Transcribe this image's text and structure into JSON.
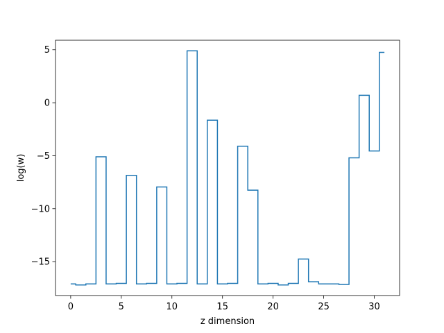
{
  "chart_data": {
    "type": "line",
    "drawstyle": "steps-mid",
    "title": "",
    "xlabel": "z dimension",
    "ylabel": "log(w)",
    "xlim": [
      -1.5,
      32.5
    ],
    "ylim": [
      -18.2,
      5.9
    ],
    "xticks": [
      0,
      5,
      10,
      15,
      20,
      25,
      30
    ],
    "xtick_labels": [
      "0",
      "5",
      "10",
      "15",
      "20",
      "25",
      "30"
    ],
    "yticks": [
      5,
      0,
      -5,
      -10,
      -15
    ],
    "ytick_labels": [
      "5",
      "0",
      "−5",
      "−10",
      "−15"
    ],
    "grid": false,
    "legend": "none",
    "color": "#1f77b4",
    "x": [
      0,
      1,
      2,
      3,
      4,
      5,
      6,
      7,
      8,
      9,
      10,
      11,
      12,
      13,
      14,
      15,
      16,
      17,
      18,
      19,
      20,
      21,
      22,
      23,
      24,
      25,
      26,
      27,
      28,
      29,
      30,
      31
    ],
    "series": [
      {
        "values": [
          -17.1,
          -17.2,
          -17.1,
          -5.1,
          -17.1,
          -17.05,
          -6.85,
          -17.1,
          -17.05,
          -7.95,
          -17.1,
          -17.05,
          4.9,
          -17.1,
          -1.65,
          -17.1,
          -17.05,
          -4.1,
          -8.25,
          -17.1,
          -17.05,
          -17.2,
          -17.05,
          -14.75,
          -16.9,
          -17.1,
          -17.1,
          -17.15,
          -5.2,
          0.7,
          -4.55,
          4.75
        ]
      }
    ]
  }
}
